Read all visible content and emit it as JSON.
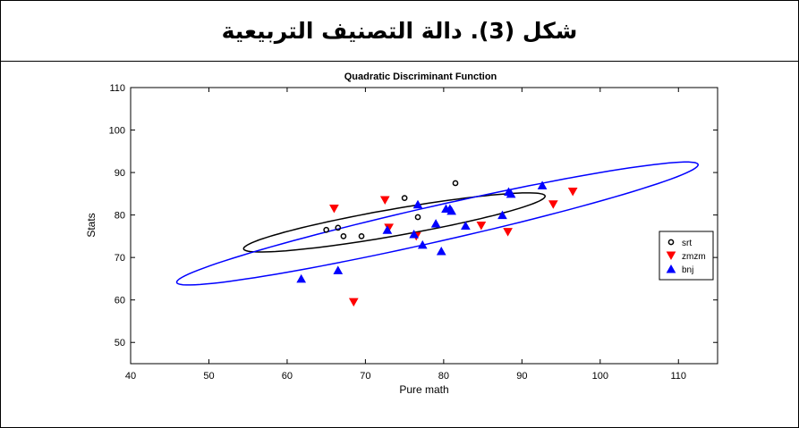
{
  "header": {
    "title": "شكل (3). دالة التصنيف التربيعية"
  },
  "chart_data": {
    "type": "scatter",
    "title": "Quadratic Discriminant Function",
    "xlabel": "Pure math",
    "ylabel": "Stats",
    "xlim": [
      40,
      115
    ],
    "ylim": [
      45,
      110
    ],
    "xticks": [
      40,
      50,
      60,
      70,
      80,
      90,
      100,
      110
    ],
    "yticks": [
      50,
      60,
      70,
      80,
      90,
      100,
      110
    ],
    "grid": false,
    "legend_position": "right",
    "series": [
      {
        "name": "srt",
        "marker": "circle",
        "color": "#000000",
        "x": [
          65.0,
          66.5,
          67.2,
          69.5,
          75.0,
          76.7,
          81.5
        ],
        "y": [
          76.5,
          77.0,
          75.0,
          75.0,
          84.0,
          79.5,
          87.5
        ]
      },
      {
        "name": "zmzm",
        "marker": "triangle-down",
        "color": "#ff0000",
        "x": [
          66.0,
          68.5,
          72.5,
          73.0,
          76.5,
          84.8,
          88.2,
          94.0,
          96.5
        ],
        "y": [
          81.5,
          59.5,
          83.5,
          77.0,
          75.0,
          77.5,
          76.0,
          82.5,
          85.5
        ]
      },
      {
        "name": "bnj",
        "marker": "triangle-up",
        "color": "#0000ff",
        "x": [
          61.8,
          66.5,
          72.8,
          76.2,
          76.7,
          77.3,
          79.0,
          79.7,
          80.3,
          80.8,
          81.0,
          82.8,
          87.5,
          88.3,
          88.6,
          92.6
        ],
        "y": [
          65.0,
          67.0,
          76.5,
          75.5,
          82.5,
          73.0,
          78.0,
          71.5,
          81.5,
          81.5,
          81.0,
          77.5,
          80.0,
          85.5,
          85.0,
          87.0
        ]
      }
    ],
    "ellipses": [
      {
        "series": "srt",
        "color": "#000000",
        "cx": 73.7,
        "cy": 78.25,
        "rx": 22.5,
        "ry": 5.0,
        "angle_deg": 32
      },
      {
        "series": "bnj",
        "color": "#0000ff",
        "cx": 79.2,
        "cy": 78.0,
        "rx": 42.0,
        "ry": 6.2,
        "angle_deg": 38
      }
    ]
  }
}
